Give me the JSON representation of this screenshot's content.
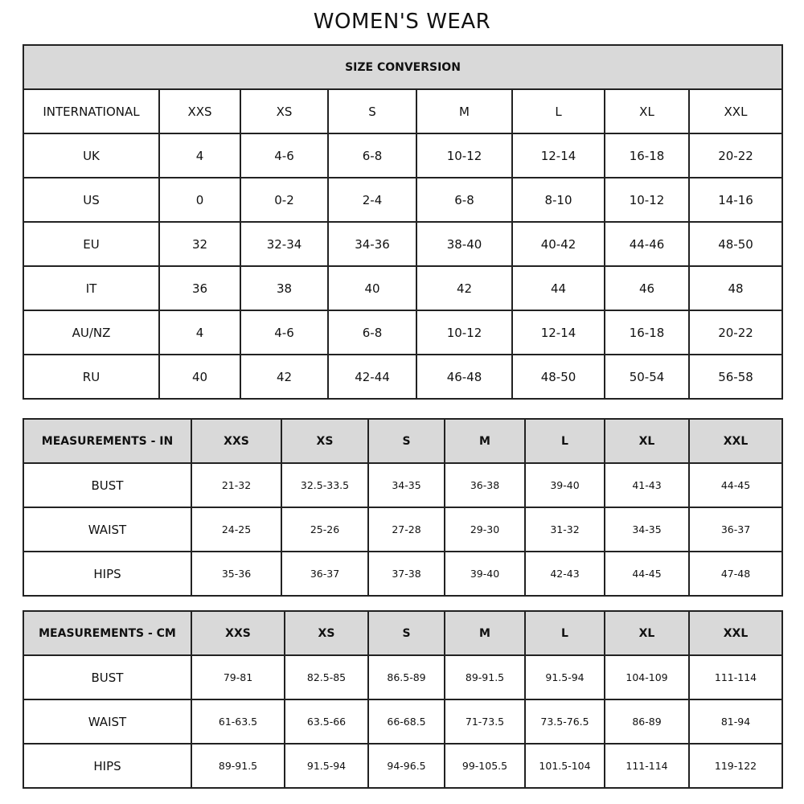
{
  "title": "WOMEN'S WEAR",
  "conversion": {
    "heading": "SIZE CONVERSION",
    "header": [
      "INTERNATIONAL",
      "XXS",
      "XS",
      "S",
      "M",
      "L",
      "XL",
      "XXL"
    ],
    "rows": [
      [
        "UK",
        "4",
        "4-6",
        "6-8",
        "10-12",
        "12-14",
        "16-18",
        "20-22"
      ],
      [
        "US",
        "0",
        "0-2",
        "2-4",
        "6-8",
        "8-10",
        "10-12",
        "14-16"
      ],
      [
        "EU",
        "32",
        "32-34",
        "34-36",
        "38-40",
        "40-42",
        "44-46",
        "48-50"
      ],
      [
        "IT",
        "36",
        "38",
        "40",
        "42",
        "44",
        "46",
        "48"
      ],
      [
        "AU/NZ",
        "4",
        "4-6",
        "6-8",
        "10-12",
        "12-14",
        "16-18",
        "20-22"
      ],
      [
        "RU",
        "40",
        "42",
        "42-44",
        "46-48",
        "48-50",
        "50-54",
        "56-58"
      ]
    ]
  },
  "inches": {
    "header": [
      "MEASUREMENTS - IN",
      "XXS",
      "XS",
      "S",
      "M",
      "L",
      "XL",
      "XXL"
    ],
    "rows": [
      [
        "BUST",
        "21-32",
        "32.5-33.5",
        "34-35",
        "36-38",
        "39-40",
        "41-43",
        "44-45"
      ],
      [
        "WAIST",
        "24-25",
        "25-26",
        "27-28",
        "29-30",
        "31-32",
        "34-35",
        "36-37"
      ],
      [
        "HIPS",
        "35-36",
        "36-37",
        "37-38",
        "39-40",
        "42-43",
        "44-45",
        "47-48"
      ]
    ]
  },
  "cm": {
    "header": [
      "MEASUREMENTS - CM",
      "XXS",
      "XS",
      "S",
      "M",
      "L",
      "XL",
      "XXL"
    ],
    "rows": [
      [
        "BUST",
        "79-81",
        "82.5-85",
        "86.5-89",
        "89-91.5",
        "91.5-94",
        "104-109",
        "111-114"
      ],
      [
        "WAIST",
        "61-63.5",
        "63.5-66",
        "66-68.5",
        "71-73.5",
        "73.5-76.5",
        "86-89",
        "81-94"
      ],
      [
        "HIPS",
        "89-91.5",
        "91.5-94",
        "94-96.5",
        "99-105.5",
        "101.5-104",
        "111-114",
        "119-122"
      ]
    ]
  }
}
